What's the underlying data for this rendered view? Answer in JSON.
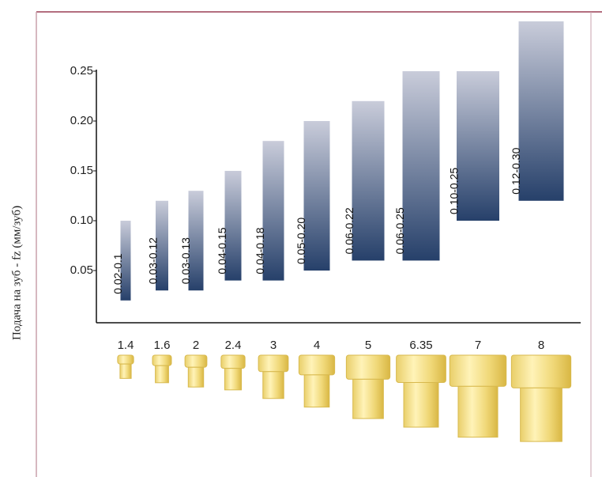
{
  "chart_data": {
    "type": "range-bar",
    "y_label": "Подача на зуб - fz (мм/зуб)",
    "categories": [
      "1.4",
      "1.6",
      "2",
      "2.4",
      "3",
      "4",
      "5",
      "6.35",
      "7",
      "8"
    ],
    "values": [
      [
        0.02,
        0.1
      ],
      [
        0.03,
        0.12
      ],
      [
        0.03,
        0.13
      ],
      [
        0.04,
        0.15
      ],
      [
        0.04,
        0.18
      ],
      [
        0.05,
        0.2
      ],
      [
        0.06,
        0.22
      ],
      [
        0.06,
        0.25
      ],
      [
        0.1,
        0.25
      ],
      [
        0.12,
        0.3
      ]
    ],
    "value_labels": [
      "0.02-0.1",
      "0.03-0.12",
      "0.03-0.13",
      "0.04-0.15",
      "0.04-0.18",
      "0.05-0.20",
      "0.06-0.22",
      "0.06-0.25",
      "0.10-0.25",
      "0.12-0.30"
    ],
    "ylim": [
      0,
      0.3
    ],
    "yticks": [
      {
        "value": 0.05,
        "label": "0.05"
      },
      {
        "value": 0.1,
        "label": "0.10"
      },
      {
        "value": 0.15,
        "label": "0.15"
      },
      {
        "value": 0.2,
        "label": "0.20"
      },
      {
        "value": 0.25,
        "label": "0.25"
      }
    ],
    "color_top": "#c9ccda",
    "color_bottom": "#26406a"
  }
}
